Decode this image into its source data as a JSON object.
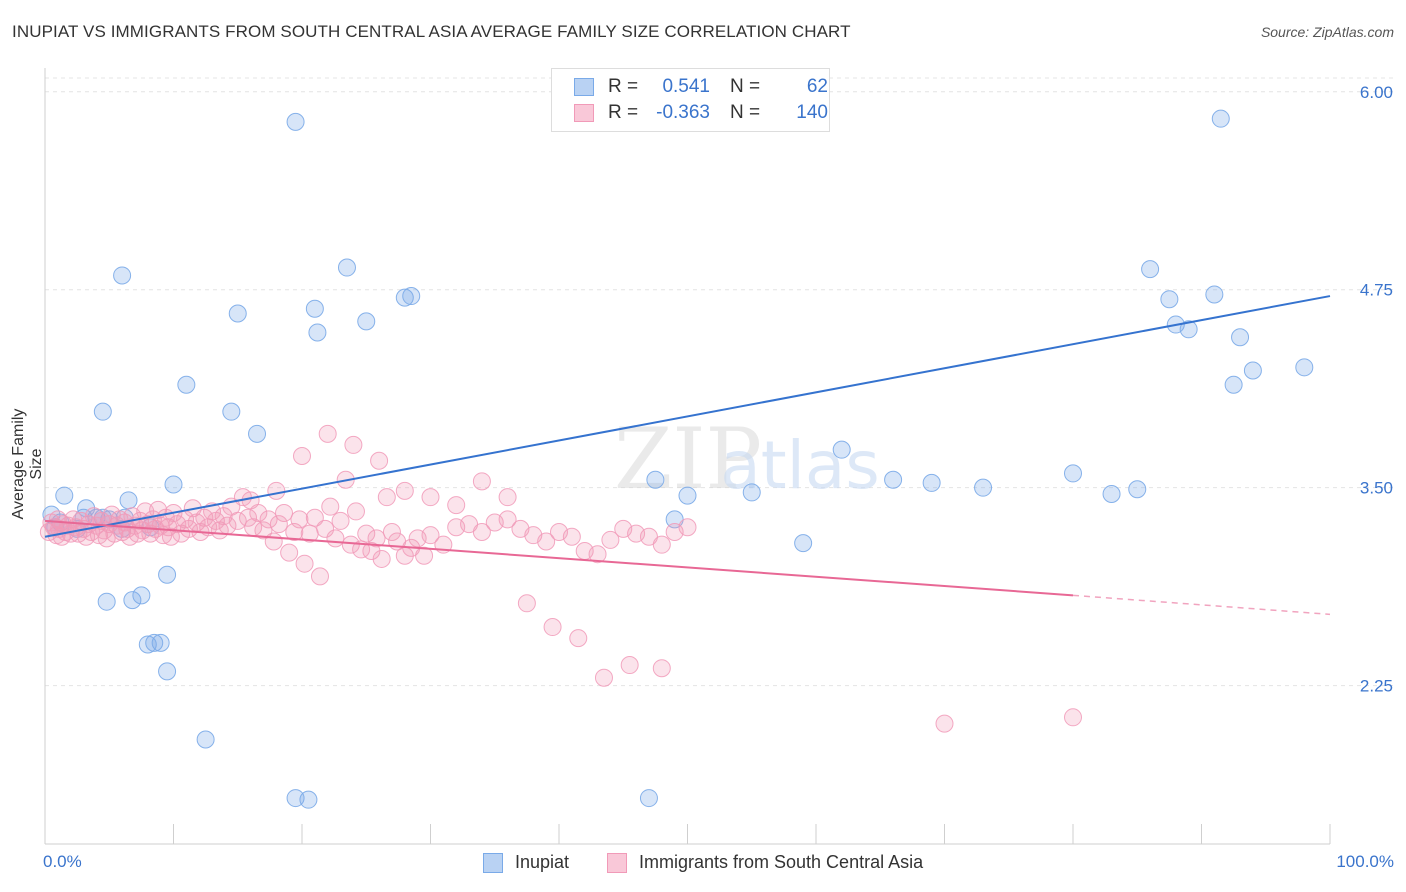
{
  "title": "INUPIAT VS IMMIGRANTS FROM SOUTH CENTRAL ASIA AVERAGE FAMILY SIZE CORRELATION CHART",
  "source": "Source: ZipAtlas.com",
  "legend": {
    "row1": {
      "r_label": "R =",
      "r_value": "0.541",
      "n_label": "N =",
      "n_value": "62"
    },
    "row2": {
      "r_label": "R =",
      "r_value": "-0.363",
      "n_label": "N =",
      "n_value": "140"
    }
  },
  "bottom_legend": {
    "series1": "Inupiat",
    "series2": "Immigrants from South Central Asia"
  },
  "watermark": "ZIPatlas",
  "chart_data": {
    "type": "scatter",
    "title": "INUPIAT VS IMMIGRANTS FROM SOUTH CENTRAL ASIA AVERAGE FAMILY SIZE CORRELATION CHART",
    "xlabel": "",
    "ylabel": "Average Family Size",
    "xlim": [
      0,
      100
    ],
    "ylim": [
      1.25,
      6.15
    ],
    "x_tick_labels": [
      "0.0%",
      "100.0%"
    ],
    "y_ticks": [
      2.25,
      3.5,
      4.75,
      6.0
    ],
    "y_tick_labels": [
      "2.25",
      "3.50",
      "4.75",
      "6.00"
    ],
    "grid": true,
    "colors": {
      "inupiat": "#7aaae8",
      "inupiat_line": "#3573cf",
      "immigrants": "#f19ab8",
      "immigrants_line": "#e86895",
      "axis_text": "#3a74cc"
    },
    "series": [
      {
        "name": "Inupiat",
        "r": 0.541,
        "n": 62,
        "trend": {
          "x0": 0,
          "y0": 3.19,
          "x1": 100,
          "y1": 4.71
        },
        "points": [
          [
            0.5,
            3.33
          ],
          [
            0.8,
            3.25
          ],
          [
            1.2,
            3.28
          ],
          [
            1.5,
            3.45
          ],
          [
            2.5,
            3.24
          ],
          [
            3.0,
            3.31
          ],
          [
            3.2,
            3.37
          ],
          [
            4.0,
            3.31
          ],
          [
            4.5,
            3.31
          ],
          [
            5.0,
            3.3
          ],
          [
            6.0,
            3.24
          ],
          [
            6.2,
            3.31
          ],
          [
            4.5,
            3.98
          ],
          [
            4.8,
            2.78
          ],
          [
            6.0,
            4.84
          ],
          [
            6.5,
            3.42
          ],
          [
            6.8,
            2.79
          ],
          [
            7.5,
            2.82
          ],
          [
            8.0,
            2.51
          ],
          [
            8.5,
            2.52
          ],
          [
            9.0,
            2.52
          ],
          [
            8.2,
            3.25
          ],
          [
            9.5,
            2.34
          ],
          [
            9.5,
            2.95
          ],
          [
            10.0,
            3.52
          ],
          [
            11.0,
            4.15
          ],
          [
            12.5,
            1.91
          ],
          [
            14.5,
            3.98
          ],
          [
            15.0,
            4.6
          ],
          [
            16.5,
            3.84
          ],
          [
            19.5,
            1.54
          ],
          [
            20.5,
            1.53
          ],
          [
            19.5,
            5.81
          ],
          [
            21.0,
            4.63
          ],
          [
            21.2,
            4.48
          ],
          [
            23.5,
            4.89
          ],
          [
            25.0,
            4.55
          ],
          [
            28.0,
            4.7
          ],
          [
            28.5,
            4.71
          ],
          [
            47.0,
            1.54
          ],
          [
            47.5,
            3.55
          ],
          [
            49.0,
            3.3
          ],
          [
            50.0,
            3.45
          ],
          [
            55.0,
            3.47
          ],
          [
            59.0,
            3.15
          ],
          [
            62.0,
            3.74
          ],
          [
            66.0,
            3.55
          ],
          [
            69.0,
            3.53
          ],
          [
            73.0,
            3.5
          ],
          [
            80.0,
            3.59
          ],
          [
            83.0,
            3.46
          ],
          [
            85.0,
            3.49
          ],
          [
            86.0,
            4.88
          ],
          [
            87.5,
            4.69
          ],
          [
            88.0,
            4.53
          ],
          [
            89.0,
            4.5
          ],
          [
            91.0,
            4.72
          ],
          [
            91.5,
            5.83
          ],
          [
            92.5,
            4.15
          ],
          [
            93.0,
            4.45
          ],
          [
            94.0,
            4.24
          ],
          [
            98.0,
            4.26
          ]
        ]
      },
      {
        "name": "Immigrants from South Central Asia",
        "r": -0.363,
        "n": 140,
        "trend": {
          "x0": 0,
          "y0": 3.29,
          "x1": 80,
          "y1": 2.82
        },
        "trend_dashed": {
          "x0": 80,
          "y0": 2.82,
          "x1": 100,
          "y1": 2.7
        },
        "points": [
          [
            0.3,
            3.22
          ],
          [
            0.5,
            3.28
          ],
          [
            0.7,
            3.25
          ],
          [
            0.9,
            3.2
          ],
          [
            1.0,
            3.3
          ],
          [
            1.1,
            3.24
          ],
          [
            1.3,
            3.19
          ],
          [
            1.4,
            3.27
          ],
          [
            1.6,
            3.22
          ],
          [
            1.8,
            3.26
          ],
          [
            2.0,
            3.21
          ],
          [
            2.2,
            3.3
          ],
          [
            2.4,
            3.25
          ],
          [
            2.6,
            3.21
          ],
          [
            2.8,
            3.29
          ],
          [
            3.0,
            3.24
          ],
          [
            3.2,
            3.19
          ],
          [
            3.4,
            3.27
          ],
          [
            3.6,
            3.22
          ],
          [
            3.8,
            3.32
          ],
          [
            4.0,
            3.26
          ],
          [
            4.2,
            3.2
          ],
          [
            4.4,
            3.29
          ],
          [
            4.6,
            3.23
          ],
          [
            4.8,
            3.18
          ],
          [
            5.0,
            3.27
          ],
          [
            5.2,
            3.33
          ],
          [
            5.4,
            3.21
          ],
          [
            5.6,
            3.26
          ],
          [
            5.8,
            3.3
          ],
          [
            6.0,
            3.22
          ],
          [
            6.2,
            3.28
          ],
          [
            6.4,
            3.24
          ],
          [
            6.6,
            3.19
          ],
          [
            6.8,
            3.32
          ],
          [
            7.0,
            3.26
          ],
          [
            7.2,
            3.21
          ],
          [
            7.4,
            3.29
          ],
          [
            7.6,
            3.23
          ],
          [
            7.8,
            3.35
          ],
          [
            8.0,
            3.27
          ],
          [
            8.2,
            3.21
          ],
          [
            8.4,
            3.3
          ],
          [
            8.6,
            3.24
          ],
          [
            8.8,
            3.36
          ],
          [
            9.0,
            3.26
          ],
          [
            9.2,
            3.2
          ],
          [
            9.4,
            3.31
          ],
          [
            9.6,
            3.25
          ],
          [
            9.8,
            3.19
          ],
          [
            10.0,
            3.34
          ],
          [
            10.3,
            3.27
          ],
          [
            10.6,
            3.21
          ],
          [
            10.9,
            3.3
          ],
          [
            11.2,
            3.24
          ],
          [
            11.5,
            3.37
          ],
          [
            11.8,
            3.28
          ],
          [
            12.1,
            3.22
          ],
          [
            12.4,
            3.31
          ],
          [
            12.7,
            3.25
          ],
          [
            13.0,
            3.35
          ],
          [
            13.3,
            3.29
          ],
          [
            13.6,
            3.23
          ],
          [
            13.9,
            3.32
          ],
          [
            14.2,
            3.26
          ],
          [
            14.5,
            3.38
          ],
          [
            15.0,
            3.29
          ],
          [
            15.4,
            3.44
          ],
          [
            15.8,
            3.31
          ],
          [
            16.2,
            3.25
          ],
          [
            16.6,
            3.34
          ],
          [
            17.0,
            3.23
          ],
          [
            17.4,
            3.3
          ],
          [
            17.8,
            3.16
          ],
          [
            18.2,
            3.27
          ],
          [
            18.6,
            3.34
          ],
          [
            19.0,
            3.09
          ],
          [
            19.4,
            3.22
          ],
          [
            19.8,
            3.3
          ],
          [
            20.2,
            3.02
          ],
          [
            20.6,
            3.21
          ],
          [
            21.0,
            3.31
          ],
          [
            21.4,
            2.94
          ],
          [
            21.8,
            3.24
          ],
          [
            22.2,
            3.38
          ],
          [
            22.6,
            3.18
          ],
          [
            23.0,
            3.29
          ],
          [
            23.4,
            3.55
          ],
          [
            23.8,
            3.14
          ],
          [
            24.2,
            3.35
          ],
          [
            24.6,
            3.11
          ],
          [
            25.0,
            3.21
          ],
          [
            25.4,
            3.1
          ],
          [
            25.8,
            3.18
          ],
          [
            26.2,
            3.05
          ],
          [
            26.6,
            3.44
          ],
          [
            27.0,
            3.22
          ],
          [
            27.4,
            3.16
          ],
          [
            28.0,
            3.07
          ],
          [
            28.5,
            3.12
          ],
          [
            29.0,
            3.18
          ],
          [
            29.5,
            3.07
          ],
          [
            30.0,
            3.2
          ],
          [
            31.0,
            3.14
          ],
          [
            32.0,
            3.25
          ],
          [
            33.0,
            3.27
          ],
          [
            34.0,
            3.22
          ],
          [
            35.0,
            3.28
          ],
          [
            36.0,
            3.3
          ],
          [
            37.0,
            3.24
          ],
          [
            38.0,
            3.2
          ],
          [
            39.0,
            3.16
          ],
          [
            40.0,
            3.22
          ],
          [
            41.0,
            3.19
          ],
          [
            42.0,
            3.1
          ],
          [
            43.0,
            3.08
          ],
          [
            44.0,
            3.17
          ],
          [
            45.0,
            3.24
          ],
          [
            46.0,
            3.21
          ],
          [
            47.0,
            3.19
          ],
          [
            48.0,
            3.14
          ],
          [
            49.0,
            3.22
          ],
          [
            50.0,
            3.25
          ],
          [
            16.0,
            3.42
          ],
          [
            18.0,
            3.48
          ],
          [
            20.0,
            3.7
          ],
          [
            22.0,
            3.84
          ],
          [
            24.0,
            3.77
          ],
          [
            26.0,
            3.67
          ],
          [
            28.0,
            3.48
          ],
          [
            30.0,
            3.44
          ],
          [
            32.0,
            3.39
          ],
          [
            34.0,
            3.54
          ],
          [
            36.0,
            3.44
          ],
          [
            37.5,
            2.77
          ],
          [
            39.5,
            2.62
          ],
          [
            41.5,
            2.55
          ],
          [
            43.5,
            2.3
          ],
          [
            45.5,
            2.38
          ],
          [
            48.0,
            2.36
          ],
          [
            70.0,
            2.01
          ],
          [
            80.0,
            2.05
          ]
        ]
      }
    ]
  }
}
